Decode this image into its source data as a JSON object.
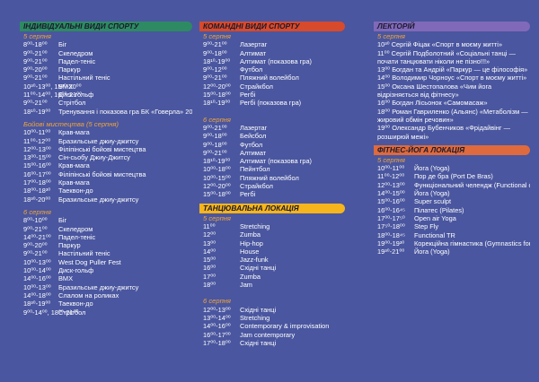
{
  "col1": {
    "title": "Індивідуальні види спорту",
    "day1": "5 серпня",
    "rows1": [
      {
        "time": "8⁰⁰-18⁰⁰",
        "name": "Біг"
      },
      {
        "time": "9⁰⁰-21⁰⁰",
        "name": "Скеледром"
      },
      {
        "time": "9⁰⁰-21⁰⁰",
        "name": "Падел-теніс"
      },
      {
        "time": "9⁰⁰-20⁰⁰",
        "name": "Паркур"
      },
      {
        "time": "9⁰⁰-21⁰⁰",
        "name": "Настільний теніс"
      },
      {
        "time": "10³⁰-13⁰⁰, 15³⁰-20⁰⁰",
        "name": "BMX"
      },
      {
        "time": "11⁰⁰-14⁰⁰, 16⁰⁰-21⁰⁰",
        "name": "Диск-гольф"
      },
      {
        "time": "9⁰⁰-21⁰⁰",
        "name": "Стрітбол"
      },
      {
        "time": "18¹⁰-19⁰⁰",
        "name": "Тренування і показова гра БК «Говерла» 2004/2005 рн"
      }
    ],
    "martial_title": "Бойові мистецтва (5 серпня)",
    "rows2": [
      {
        "time": "10⁰⁰-11⁰⁰",
        "name": "Крав-мага"
      },
      {
        "time": "11⁰⁰-12⁰⁰",
        "name": "Бразильське джиу-джитсу"
      },
      {
        "time": "12⁰⁰-13⁰⁰",
        "name": "Філіпінські бойові мистецтва"
      },
      {
        "time": "13⁰⁰-15⁰⁰",
        "name": "Сін-сьобу Джиу-Джитсу"
      },
      {
        "time": "15⁰⁰-16⁰⁰",
        "name": "Крав-мага"
      },
      {
        "time": "16⁰⁰-17⁰⁰",
        "name": "Філіпінські бойові мистецтва"
      },
      {
        "time": "17⁰⁰-18⁰⁰",
        "name": "Крав-мага"
      },
      {
        "time": "18⁰⁰-18³⁰",
        "name": "Таеквон-до"
      },
      {
        "time": "18³⁰-20⁰⁰",
        "name": "Бразильське джиу-джитсу"
      }
    ],
    "day2": "6 серпня",
    "rows3": [
      {
        "time": "8⁰⁰-10⁰⁰",
        "name": "Біг"
      },
      {
        "time": "9⁰⁰-21⁰⁰",
        "name": "Скеледром"
      },
      {
        "time": "14⁰⁰-21⁰⁰",
        "name": "Падел-теніс"
      },
      {
        "time": "9⁰⁰-20⁰⁰",
        "name": "Паркур"
      },
      {
        "time": "9⁰⁰-21⁰⁰",
        "name": "Настільний теніс"
      },
      {
        "time": "10⁰⁰-13⁰⁰",
        "name": "West Dog Puller Fest"
      },
      {
        "time": "10⁰⁰-14⁰⁰",
        "name": "Диск-гольф"
      },
      {
        "time": "14⁰⁰-16⁰⁰",
        "name": "BMX"
      },
      {
        "time": "10⁰⁰-13⁰⁰",
        "name": "Бразильське джиу-джитсу"
      },
      {
        "time": "14⁰⁰-18⁰⁰",
        "name": "Слалом на роликах"
      },
      {
        "time": "18³⁰-19⁰⁰",
        "name": "Таеквон-до"
      },
      {
        "time": "9⁰⁰-14⁰⁰, 18⁰⁰-21⁰⁰",
        "name": "Стрітбол"
      }
    ]
  },
  "col2": {
    "title": "Командні види спорту",
    "day1": "5 серпня",
    "rows1": [
      {
        "time": "9⁰⁰-21⁰⁰",
        "name": "Лазертаг"
      },
      {
        "time": "9⁰⁰-18⁰⁰",
        "name": "Алтимат"
      },
      {
        "time": "18¹⁰-19⁰⁰",
        "name": "Алтимат (показова гра)"
      },
      {
        "time": "9⁰⁰-12⁰⁰",
        "name": "Футбол"
      },
      {
        "time": "9⁰⁰-21⁰⁰",
        "name": "Пляжний волейбол"
      },
      {
        "time": "12⁰⁰-20⁰⁰",
        "name": "Страйкбол"
      },
      {
        "time": "15⁰⁰-18⁰⁰",
        "name": "Регбі"
      },
      {
        "time": "18¹⁰-19⁰⁰",
        "name": "Регбі (показова гра)"
      }
    ],
    "day2": "6 серпня",
    "rows2": [
      {
        "time": "9⁰⁰-21⁰⁰",
        "name": "Лазертаг"
      },
      {
        "time": "9⁰⁰-18⁰⁰",
        "name": "Бейсбол"
      },
      {
        "time": "9⁰⁰-18⁰⁰",
        "name": "Футбол"
      },
      {
        "time": "9⁰⁰-21⁰⁰",
        "name": "Алтимат"
      },
      {
        "time": "18¹⁰-19⁰⁰",
        "name": "Алтимат (показова гра)"
      },
      {
        "time": "10⁰⁰-18⁰⁰",
        "name": "Пейнтбол"
      },
      {
        "time": "10⁰⁰-15⁰⁰",
        "name": "Пляжний волейбол"
      },
      {
        "time": "12⁰⁰-20⁰⁰",
        "name": "Страйкбол"
      },
      {
        "time": "15⁰⁰-18⁰⁰",
        "name": "Регбі"
      }
    ],
    "dance_title": "Танцювальна локація",
    "dance_day1": "5 серпня",
    "dance1": [
      {
        "time": "11⁰⁰",
        "name": "Stretching"
      },
      {
        "time": "12⁰⁰",
        "name": "Zumba"
      },
      {
        "time": "13⁰⁰",
        "name": "Hip-hop"
      },
      {
        "time": "14⁰⁰",
        "name": "House"
      },
      {
        "time": "15⁰⁰",
        "name": "Jazz-funk"
      },
      {
        "time": "16⁰⁰",
        "name": "Східні танці"
      },
      {
        "time": "17⁰⁰",
        "name": "Zumba"
      },
      {
        "time": "18⁰⁰",
        "name": "Jam"
      }
    ],
    "dance_day2": "6 серпня",
    "dance2": [
      {
        "time": "12⁰⁰-13⁰⁰",
        "name": "Східні танці"
      },
      {
        "time": "13⁰⁰-14⁰⁰",
        "name": "Stretching"
      },
      {
        "time": "14⁰⁰-16⁰⁰",
        "name": "Contemporary & improvisation"
      },
      {
        "time": "16⁰⁰-17⁰⁰",
        "name": "Jam contemporary"
      },
      {
        "time": "17⁰⁰-18⁰⁰",
        "name": "Східні танці"
      }
    ]
  },
  "col3": {
    "title": "Лекторій",
    "day1": "5 серпня",
    "lectures": [
      "10³⁰ Сергій Фіцак «Спорт в моєму житті»",
      "11⁰⁰ Сергій Подболотний «Соціальні танці — почати танцювати ніколи не пізно!!!»",
      "13⁰⁰ Богдан та Андрій «Паркур — це філософія»",
      "14⁰⁰ Володимир Чорноус «Спорт в моєму житті»",
      "15⁰⁰ Оксана Шестопалова «Чим йога відрізняється від фітнесу»",
      "16⁰⁰ Богдан Лісьонок «Самомасаж»",
      "18⁰⁰ Роман Гавриленко (Альянс) «Метаболізм — жировий обмін речовин»",
      "19⁰⁰ Олександр Бубенчиков «Фрідайвінг — розширюй межі»"
    ],
    "fitness_title": "Фітнес-йога локація",
    "fitness_day1": "5 серпня",
    "fitness": [
      {
        "time": "10⁰⁰-11⁰⁰",
        "name": "Йога (Yoga)"
      },
      {
        "time": "11⁰⁰-12⁰⁰",
        "name": "Пор де бра (Port De Bras)"
      },
      {
        "time": "12⁰⁰-13⁰⁰",
        "name": "Функціональний челендж (Functional challenge)"
      },
      {
        "time": "14⁰⁰-15⁰⁰",
        "name": "Йога (Yoga)"
      },
      {
        "time": "15⁰⁰-16⁰⁰",
        "name": "Super sculpt"
      },
      {
        "time": "16⁰⁰-16⁴⁵",
        "name": "Пілатес (Pilates)"
      },
      {
        "time": "17⁰⁰-17⁵⁰",
        "name": "Open air Yoga"
      },
      {
        "time": "17⁵⁰-18⁰⁰",
        "name": "Step Fly"
      },
      {
        "time": "18⁰⁰-18⁴⁵",
        "name": "Functional TR"
      },
      {
        "time": "19⁰⁰-19³⁰",
        "name": "Корекційна гімнастика (Gymnastics for body correction)"
      },
      {
        "time": "19³⁰-21⁰⁰",
        "name": "Йога (Yoga)"
      }
    ]
  },
  "colors": {
    "background": "#4a569f",
    "accent_date": "#f2a53a",
    "header_green": "#2e8a62",
    "header_red": "#d84a2c",
    "header_yellow": "#f6b51d",
    "header_purple": "#8169b9",
    "header_orange": "#de6a3d"
  }
}
